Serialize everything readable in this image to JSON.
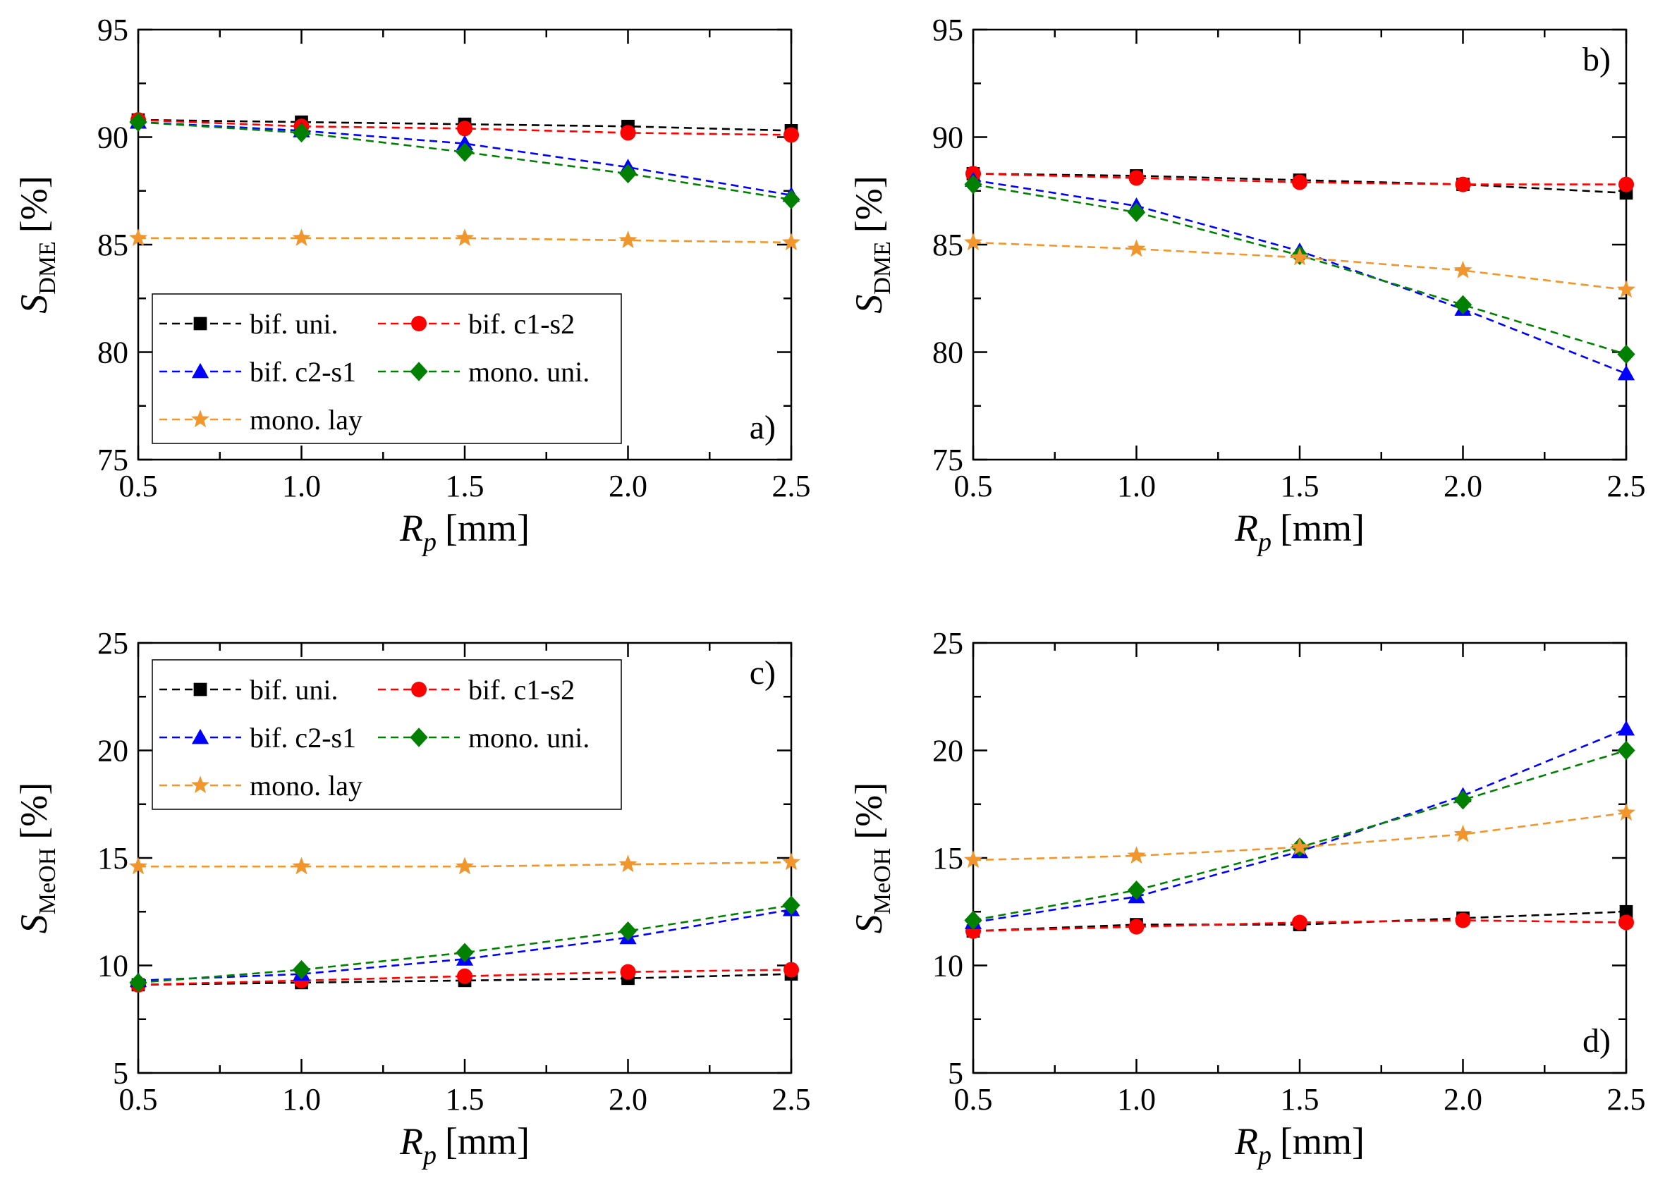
{
  "chart_data": [
    {
      "type": "line",
      "panel_label": "a)",
      "xlabel_main": "R",
      "xlabel_sub": "p",
      "xlabel_unit": "[mm]",
      "ylabel_main": "S",
      "ylabel_sub": "DME",
      "ylabel_unit": "[%]",
      "xlim": [
        0.5,
        2.5
      ],
      "ylim": [
        75,
        95
      ],
      "x_ticks": [
        "0.5",
        "1.0",
        "1.5",
        "2.0",
        "2.5"
      ],
      "y_ticks": [
        "75",
        "80",
        "85",
        "90",
        "95"
      ],
      "legend": true,
      "legend_position": "bottom-left",
      "x": [
        0.5,
        1.0,
        1.5,
        2.0,
        2.5
      ],
      "series": [
        {
          "name": "bif. uni.",
          "color": "#000000",
          "marker": "square",
          "values": [
            90.8,
            90.7,
            90.6,
            90.5,
            90.3
          ]
        },
        {
          "name": "bif. c1-s2",
          "color": "#ff0000",
          "marker": "circle",
          "values": [
            90.8,
            90.5,
            90.4,
            90.2,
            90.1
          ]
        },
        {
          "name": "bif. c2-s1",
          "color": "#0000ff",
          "marker": "triangle",
          "values": [
            90.7,
            90.3,
            89.7,
            88.6,
            87.3
          ]
        },
        {
          "name": "mono. uni.",
          "color": "#008000",
          "marker": "diamond",
          "values": [
            90.7,
            90.2,
            89.3,
            88.3,
            87.1
          ]
        },
        {
          "name": "mono. lay",
          "color": "#f0962d",
          "marker": "star",
          "values": [
            85.3,
            85.3,
            85.3,
            85.2,
            85.1
          ]
        }
      ]
    },
    {
      "type": "line",
      "panel_label": "b)",
      "xlabel_main": "R",
      "xlabel_sub": "p",
      "xlabel_unit": "[mm]",
      "ylabel_main": "S",
      "ylabel_sub": "DME",
      "ylabel_unit": "[%]",
      "xlim": [
        0.5,
        2.5
      ],
      "ylim": [
        75,
        95
      ],
      "x_ticks": [
        "0.5",
        "1.0",
        "1.5",
        "2.0",
        "2.5"
      ],
      "y_ticks": [
        "75",
        "80",
        "85",
        "90",
        "95"
      ],
      "legend": false,
      "x": [
        0.5,
        1.0,
        1.5,
        2.0,
        2.5
      ],
      "series": [
        {
          "name": "bif. uni.",
          "color": "#000000",
          "marker": "square",
          "values": [
            88.3,
            88.2,
            88.0,
            87.8,
            87.4
          ]
        },
        {
          "name": "bif. c1-s2",
          "color": "#ff0000",
          "marker": "circle",
          "values": [
            88.3,
            88.1,
            87.9,
            87.8,
            87.8
          ]
        },
        {
          "name": "bif. c2-s1",
          "color": "#0000ff",
          "marker": "triangle",
          "values": [
            88.0,
            86.8,
            84.7,
            82.0,
            79.0
          ]
        },
        {
          "name": "mono. uni.",
          "color": "#008000",
          "marker": "diamond",
          "values": [
            87.8,
            86.5,
            84.5,
            82.2,
            79.9
          ]
        },
        {
          "name": "mono. lay",
          "color": "#f0962d",
          "marker": "star",
          "values": [
            85.1,
            84.8,
            84.4,
            83.8,
            82.9
          ]
        }
      ]
    },
    {
      "type": "line",
      "panel_label": "c)",
      "xlabel_main": "R",
      "xlabel_sub": "p",
      "xlabel_unit": "[mm]",
      "ylabel_main": "S",
      "ylabel_sub": "MeOH",
      "ylabel_unit": "[%]",
      "xlim": [
        0.5,
        2.5
      ],
      "ylim": [
        5,
        25
      ],
      "x_ticks": [
        "0.5",
        "1.0",
        "1.5",
        "2.0",
        "2.5"
      ],
      "y_ticks": [
        "5",
        "10",
        "15",
        "20",
        "25"
      ],
      "legend": true,
      "legend_position": "top-left",
      "x": [
        0.5,
        1.0,
        1.5,
        2.0,
        2.5
      ],
      "series": [
        {
          "name": "bif. uni.",
          "color": "#000000",
          "marker": "square",
          "values": [
            9.1,
            9.2,
            9.3,
            9.4,
            9.6
          ]
        },
        {
          "name": "bif. c1-s2",
          "color": "#ff0000",
          "marker": "circle",
          "values": [
            9.1,
            9.3,
            9.5,
            9.7,
            9.8
          ]
        },
        {
          "name": "bif. c2-s1",
          "color": "#0000ff",
          "marker": "triangle",
          "values": [
            9.3,
            9.6,
            10.3,
            11.3,
            12.6
          ]
        },
        {
          "name": "mono. uni.",
          "color": "#008000",
          "marker": "diamond",
          "values": [
            9.2,
            9.8,
            10.6,
            11.6,
            12.8
          ]
        },
        {
          "name": "mono. lay",
          "color": "#f0962d",
          "marker": "star",
          "values": [
            14.6,
            14.6,
            14.6,
            14.7,
            14.8
          ]
        }
      ]
    },
    {
      "type": "line",
      "panel_label": "d)",
      "xlabel_main": "R",
      "xlabel_sub": "p",
      "xlabel_unit": "[mm]",
      "ylabel_main": "S",
      "ylabel_sub": "MeOH",
      "ylabel_unit": "[%]",
      "xlim": [
        0.5,
        2.5
      ],
      "ylim": [
        5,
        25
      ],
      "x_ticks": [
        "0.5",
        "1.0",
        "1.5",
        "2.0",
        "2.5"
      ],
      "y_ticks": [
        "5",
        "10",
        "15",
        "20",
        "25"
      ],
      "legend": false,
      "x": [
        0.5,
        1.0,
        1.5,
        2.0,
        2.5
      ],
      "series": [
        {
          "name": "bif. uni.",
          "color": "#000000",
          "marker": "square",
          "values": [
            11.6,
            11.9,
            11.9,
            12.2,
            12.5
          ]
        },
        {
          "name": "bif. c1-s2",
          "color": "#ff0000",
          "marker": "circle",
          "values": [
            11.6,
            11.8,
            12.0,
            12.1,
            12.0
          ]
        },
        {
          "name": "bif. c2-s1",
          "color": "#0000ff",
          "marker": "triangle",
          "values": [
            12.0,
            13.2,
            15.3,
            17.9,
            21.0
          ]
        },
        {
          "name": "mono. uni.",
          "color": "#008000",
          "marker": "diamond",
          "values": [
            12.1,
            13.5,
            15.5,
            17.7,
            20.0
          ]
        },
        {
          "name": "mono. lay",
          "color": "#f0962d",
          "marker": "star",
          "values": [
            14.9,
            15.1,
            15.5,
            16.1,
            17.1
          ]
        }
      ]
    }
  ]
}
